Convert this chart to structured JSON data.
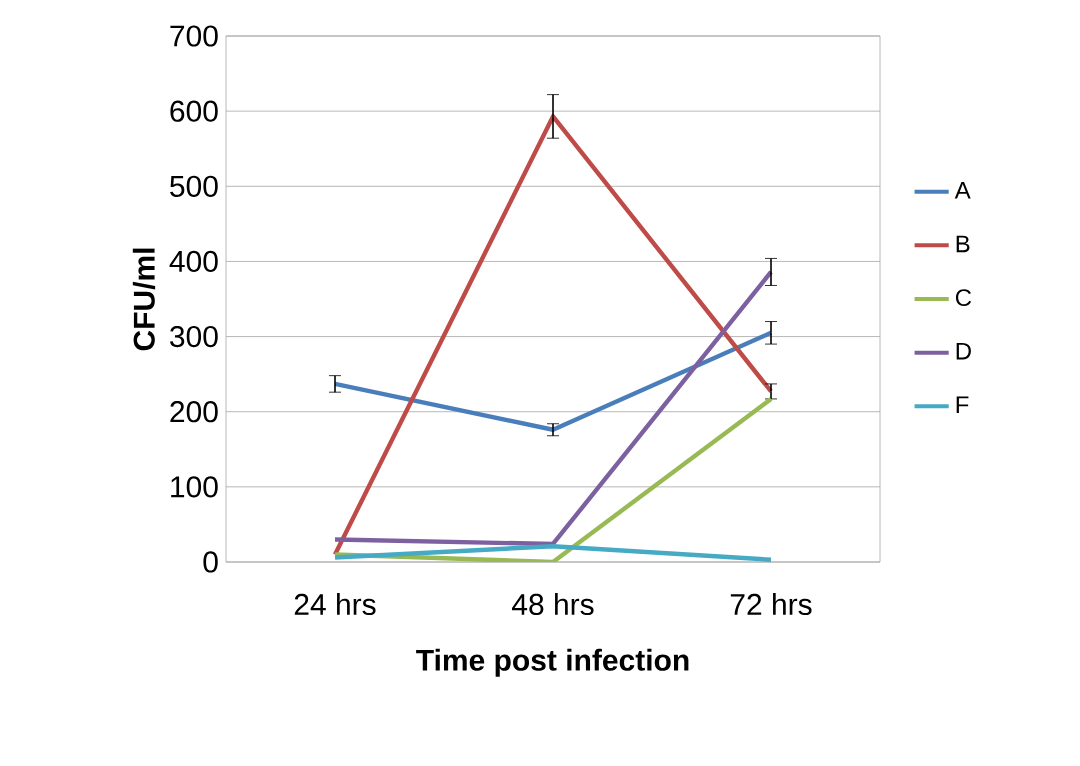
{
  "chart_data": {
    "type": "line",
    "xlabel": "Time post infection",
    "ylabel": "CFU/ml",
    "categories": [
      "24 hrs",
      "48 hrs",
      "72 hrs"
    ],
    "series": [
      {
        "name": "A",
        "color": "#4a7ebb",
        "values": [
          237,
          176,
          305
        ],
        "errors": [
          11,
          8,
          15
        ]
      },
      {
        "name": "B",
        "color": "#be4b48",
        "values": [
          10,
          593,
          227
        ],
        "errors": [
          null,
          29,
          10
        ]
      },
      {
        "name": "C",
        "color": "#98b954",
        "values": [
          10,
          0,
          217
        ]
      },
      {
        "name": "D",
        "color": "#7d60a0",
        "values": [
          30,
          24,
          386
        ],
        "errors": [
          null,
          null,
          18
        ]
      },
      {
        "name": "F",
        "color": "#46aac5",
        "values": [
          6,
          21,
          3
        ]
      }
    ],
    "ylim": [
      0,
      700
    ],
    "yticks": [
      0,
      100,
      200,
      300,
      400,
      500,
      600,
      700
    ],
    "grid": "y",
    "legend": "right",
    "marker": "none",
    "line_style": "solid"
  }
}
